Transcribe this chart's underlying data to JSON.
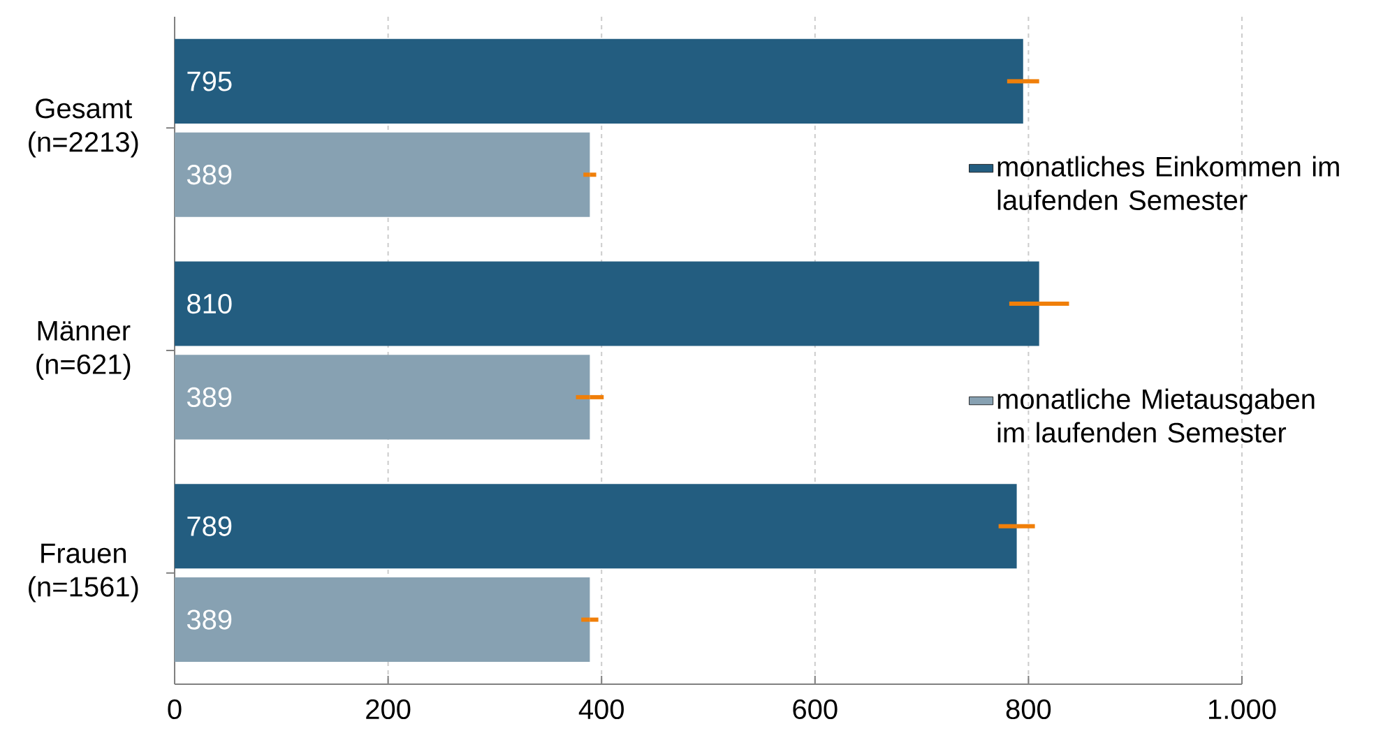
{
  "chart_data": {
    "type": "bar",
    "orientation": "horizontal",
    "categories": [
      "Gesamt (n=2213)",
      "Männer (n=621)",
      "Frauen (n=1561)"
    ],
    "series": [
      {
        "name": "monatliches Einkommen im laufenden Semester",
        "color": "#235d80",
        "values": [
          795,
          810,
          789
        ],
        "errors": [
          15,
          28,
          17
        ]
      },
      {
        "name": "monatliche Mietausgaben im laufenden Semester",
        "color": "#87a1b2",
        "values": [
          389,
          389,
          389
        ],
        "errors": [
          6,
          13,
          8
        ]
      }
    ],
    "xlim": [
      0,
      1000
    ],
    "xticks": [
      0,
      200,
      400,
      600,
      800,
      {
        "value": 1000,
        "label": "1.000"
      }
    ],
    "grid": "x",
    "legend": "right",
    "data_labels": true
  }
}
